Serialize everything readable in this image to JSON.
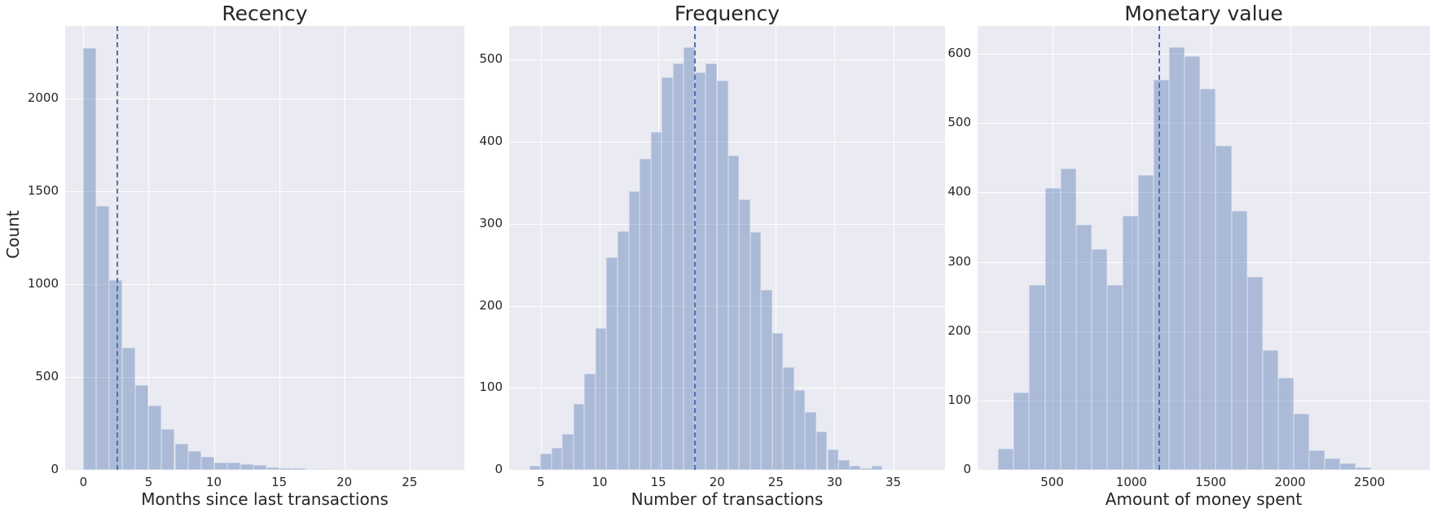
{
  "figure": {
    "ylabel": "Count",
    "bar_color": "#4c72b0",
    "background_color": "#eaeaf2",
    "mean_line_color": "#4c72b0"
  },
  "chart_data": [
    {
      "type": "bar",
      "title": "Recency",
      "xlabel": "Months since last transactions",
      "ylabel": "Count",
      "bin_edges_start": 0,
      "bin_width": 1,
      "values": [
        2270,
        1420,
        1020,
        660,
        455,
        345,
        220,
        140,
        100,
        70,
        40,
        38,
        30,
        25,
        15,
        10,
        8,
        5,
        3,
        2,
        1,
        0,
        0,
        0,
        0,
        0,
        0,
        1
      ],
      "mean_line_x": 2.6,
      "xlim": [
        -1.4,
        29.2
      ],
      "ylim": [
        0,
        2390
      ],
      "xticks": [
        0,
        5,
        10,
        15,
        20,
        25
      ],
      "yticks": [
        0,
        500,
        1000,
        1500,
        2000
      ],
      "grid": true
    },
    {
      "type": "bar",
      "title": "Frequency",
      "xlabel": "Number of transactions",
      "ylabel": "",
      "bin_edges_start": 4,
      "bin_width": 0.94,
      "values": [
        5,
        20,
        27,
        44,
        80,
        117,
        173,
        259,
        291,
        340,
        379,
        412,
        478,
        495,
        515,
        484,
        495,
        475,
        383,
        330,
        290,
        219,
        167,
        125,
        97,
        70,
        47,
        25,
        12,
        5,
        2,
        5
      ],
      "mean_line_x": 18.1,
      "xlim": [
        2.3,
        39.4
      ],
      "ylim": [
        0,
        541
      ],
      "xticks": [
        5,
        10,
        15,
        20,
        25,
        30,
        35
      ],
      "yticks": [
        0,
        100,
        200,
        300,
        400,
        500
      ],
      "grid": true
    },
    {
      "type": "bar",
      "title": "Monetary value",
      "xlabel": "Amount of money spent",
      "ylabel": "",
      "bin_edges_start": 160,
      "bin_width": 98,
      "values": [
        30,
        112,
        266,
        406,
        434,
        354,
        318,
        266,
        366,
        425,
        563,
        609,
        597,
        550,
        467,
        374,
        278,
        173,
        133,
        81,
        28,
        17,
        9,
        4
      ],
      "mean_line_x": 1175,
      "xlim": [
        30,
        2880
      ],
      "ylim": [
        0,
        640
      ],
      "xticks": [
        500,
        1000,
        1500,
        2000,
        2500
      ],
      "yticks": [
        0,
        100,
        200,
        300,
        400,
        500,
        600
      ],
      "grid": true
    }
  ]
}
